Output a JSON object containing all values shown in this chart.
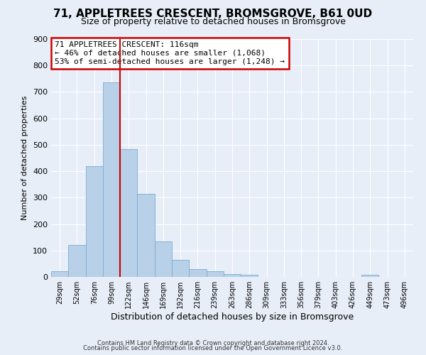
{
  "title": "71, APPLETREES CRESCENT, BROMSGROVE, B61 0UD",
  "subtitle": "Size of property relative to detached houses in Bromsgrove",
  "xlabel": "Distribution of detached houses by size in Bromsgrove",
  "ylabel": "Number of detached properties",
  "bar_labels": [
    "29sqm",
    "52sqm",
    "76sqm",
    "99sqm",
    "122sqm",
    "146sqm",
    "169sqm",
    "192sqm",
    "216sqm",
    "239sqm",
    "263sqm",
    "286sqm",
    "309sqm",
    "333sqm",
    "356sqm",
    "379sqm",
    "403sqm",
    "426sqm",
    "449sqm",
    "473sqm",
    "496sqm"
  ],
  "bar_values": [
    22,
    122,
    418,
    735,
    483,
    315,
    133,
    65,
    30,
    22,
    11,
    7,
    0,
    0,
    0,
    0,
    0,
    0,
    8,
    0,
    0
  ],
  "bar_color": "#b8d0e8",
  "bar_edge_color": "#7aaed0",
  "bar_width": 1.0,
  "vline_x_index": 4,
  "vline_color": "#cc0000",
  "vline_linewidth": 1.5,
  "ylim": [
    0,
    900
  ],
  "yticks": [
    0,
    100,
    200,
    300,
    400,
    500,
    600,
    700,
    800,
    900
  ],
  "annotation_text": "71 APPLETREES CRESCENT: 116sqm\n← 46% of detached houses are smaller (1,068)\n53% of semi-detached houses are larger (1,248) →",
  "annotation_box_facecolor": "white",
  "annotation_box_edgecolor": "#cc0000",
  "footnote1": "Contains HM Land Registry data © Crown copyright and database right 2024.",
  "footnote2": "Contains public sector information licensed under the Open Government Licence v3.0.",
  "background_color": "#e8eef8",
  "grid_color": "white",
  "title_fontsize": 11,
  "subtitle_fontsize": 9,
  "xlabel_fontsize": 9,
  "ylabel_fontsize": 8,
  "footnote_fontsize": 6,
  "annotation_fontsize": 8
}
